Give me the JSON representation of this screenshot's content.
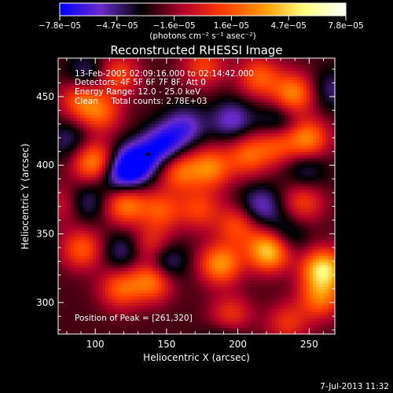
{
  "chart_data": {
    "type": "heatmap",
    "title": "Reconstructed RHESSI Image",
    "xlabel": "Heliocentric X (arcsec)",
    "ylabel": "Heliocentric Y (arcsec)",
    "xlim": [
      74,
      268
    ],
    "ylim": [
      277,
      478
    ],
    "x_ticks": [
      100,
      150,
      200,
      250
    ],
    "y_ticks": [
      300,
      350,
      400,
      450
    ],
    "x_tick_labels": [
      "100",
      "150",
      "200",
      "250"
    ],
    "y_tick_labels": [
      "300",
      "350",
      "400",
      "450"
    ],
    "colorbar": {
      "range": [
        -7.8e-05,
        7.8e-05
      ],
      "tick_labels": [
        "−7.8e−05",
        "−4.7e−05",
        "−1.6e−05",
        "1.6e−05",
        "4.7e−05",
        "7.8e−05"
      ],
      "units": "(photons cm⁻² s⁻¹ asec⁻²)",
      "stops": [
        "#0000ff",
        "#6a2bc8",
        "#000000",
        "#b0002a",
        "#ff3c00",
        "#ff9a00",
        "#ffff80",
        "#ffffff"
      ]
    },
    "annotations": [
      "13-Feb-2005 02:09:16.000 to 02:14:42.000",
      "Detectors: 4F 5F 6F 7F 8F, Att 0",
      "Energy Range: 12.0 - 25.0 keV",
      "Clean     Total counts: 2.78E+03"
    ],
    "peak_label": "Position of Peak = [261,320]",
    "marker": {
      "x": 137,
      "y": 408
    },
    "sources": [
      {
        "x": 222,
        "y": 338,
        "amp": 1.0
      },
      {
        "x": 260,
        "y": 324,
        "amp": 1.0
      },
      {
        "x": 188,
        "y": 328,
        "amp": 0.75
      },
      {
        "x": 140,
        "y": 316,
        "amp": 0.7
      },
      {
        "x": 140,
        "y": 340,
        "amp": 0.5
      },
      {
        "x": 118,
        "y": 310,
        "amp": 0.55
      },
      {
        "x": 91,
        "y": 339,
        "amp": 0.55
      },
      {
        "x": 258,
        "y": 303,
        "amp": 0.6
      },
      {
        "x": 90,
        "y": 448,
        "amp": 0.55
      },
      {
        "x": 104,
        "y": 438,
        "amp": 0.5
      },
      {
        "x": 116,
        "y": 466,
        "amp": 0.5
      },
      {
        "x": 99,
        "y": 402,
        "amp": 0.75
      },
      {
        "x": 159,
        "y": 396,
        "amp": 0.6
      },
      {
        "x": 181,
        "y": 398,
        "amp": 0.65
      },
      {
        "x": 207,
        "y": 407,
        "amp": 0.55
      },
      {
        "x": 227,
        "y": 415,
        "amp": 0.5
      },
      {
        "x": 249,
        "y": 419,
        "amp": 0.7
      },
      {
        "x": 239,
        "y": 452,
        "amp": 0.7
      },
      {
        "x": 215,
        "y": 464,
        "amp": 0.55
      },
      {
        "x": 176,
        "y": 472,
        "amp": 0.45
      },
      {
        "x": 121,
        "y": 372,
        "amp": 0.7
      },
      {
        "x": 146,
        "y": 367,
        "amp": 0.5
      },
      {
        "x": 173,
        "y": 368,
        "amp": 0.45
      },
      {
        "x": 200,
        "y": 356,
        "amp": 0.5
      },
      {
        "x": 246,
        "y": 373,
        "amp": 0.45
      },
      {
        "x": 195,
        "y": 290,
        "amp": 0.45
      },
      {
        "x": 235,
        "y": 285,
        "amp": 0.4
      },
      {
        "x": 81,
        "y": 372,
        "amp": 0.4
      },
      {
        "x": 129,
        "y": 402,
        "amp": -0.75
      },
      {
        "x": 118,
        "y": 392,
        "amp": -0.6
      },
      {
        "x": 148,
        "y": 414,
        "amp": -0.65
      },
      {
        "x": 163,
        "y": 428,
        "amp": -0.45
      },
      {
        "x": 92,
        "y": 373,
        "amp": -0.45
      },
      {
        "x": 216,
        "y": 370,
        "amp": -0.45
      },
      {
        "x": 233,
        "y": 349,
        "amp": -0.35
      },
      {
        "x": 148,
        "y": 330,
        "amp": -0.55
      },
      {
        "x": 120,
        "y": 337,
        "amp": -0.35
      },
      {
        "x": 196,
        "y": 433,
        "amp": -0.45
      },
      {
        "x": 228,
        "y": 431,
        "amp": -0.35
      },
      {
        "x": 95,
        "y": 466,
        "amp": -0.35
      },
      {
        "x": 192,
        "y": 273,
        "amp": -0.3
      },
      {
        "x": 248,
        "y": 397,
        "amp": -0.3
      },
      {
        "x": 266,
        "y": 455,
        "amp": -0.3
      },
      {
        "x": 82,
        "y": 418,
        "amp": -0.3
      }
    ]
  },
  "footer": {
    "timestamp": "7-Jul-2013 11:32"
  }
}
